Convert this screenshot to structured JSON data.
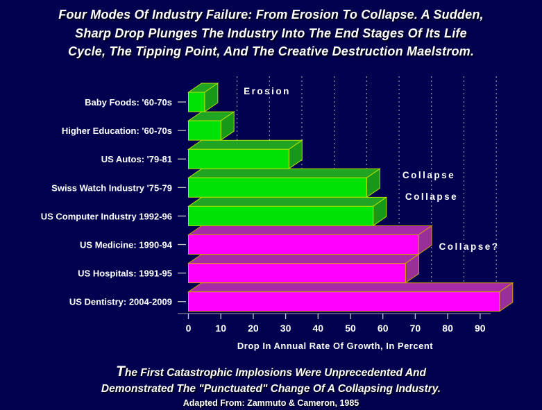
{
  "slide": {
    "title_lines": [
      "Four Modes Of Industry Failure: From Erosion To Collapse. A Sudden,",
      "Sharp Drop Plunges The Industry Into The End Stages Of Its Life",
      "Cycle, The Tipping Point, And The Creative Destruction Maelstrom."
    ],
    "caption": {
      "line1_initial": "T",
      "line1_rest": "he First Catastrophic Implosions Were Unprecedented And",
      "line2": "Demonstrated The \"Punctuated\" Change Of A Collapsing Industry.",
      "credit": "Adapted From: Zammuto & Cameron, 1985"
    }
  },
  "chart_data": {
    "type": "bar",
    "orientation": "horizontal",
    "title": "",
    "xlabel": "Drop In Annual Rate Of Growth, In Percent",
    "ylabel": "",
    "categories": [
      "Baby Foods: '60-70s",
      "Higher Education: '60-70s",
      "US Autos: '79-81",
      "Swiss Watch Industry '75-79",
      "US Computer Industry 1992-96",
      "US Medicine: 1990-94",
      "US Hospitals: 1991-95",
      "US Dentistry: 2004-2009"
    ],
    "values": [
      5,
      10,
      31,
      55,
      57,
      71,
      67,
      96
    ],
    "groups": [
      "erosion",
      "erosion",
      "erosion",
      "erosion",
      "erosion",
      "collapse",
      "collapse",
      "collapse"
    ],
    "x_ticks": [
      0,
      10,
      20,
      30,
      40,
      50,
      60,
      70,
      80,
      90
    ],
    "xlim": [
      0,
      100
    ],
    "gridlines_at": [
      15,
      25,
      35,
      45,
      55,
      65,
      75,
      85,
      95
    ],
    "grid": "dashed-vertical",
    "legend": "none",
    "annotations": [
      {
        "text": "Erosion",
        "x": 385,
        "y": 29
      },
      {
        "text": "Collapse",
        "x": 618,
        "y": 150
      },
      {
        "text": "Collapse",
        "x": 622,
        "y": 181
      },
      {
        "text": "Collapse?",
        "x": 676,
        "y": 253
      }
    ]
  },
  "colors": {
    "background": "#020150",
    "text": "#FFFFFF",
    "grid": "#C8C8C8",
    "erosion": {
      "front": "#00E206",
      "top": "#21A421",
      "side": "#189818",
      "outline": "#B8E000"
    },
    "collapse": {
      "front": "#FF00FF",
      "top": "#A62BA6",
      "side": "#993099",
      "outline": "#D2A000"
    }
  }
}
